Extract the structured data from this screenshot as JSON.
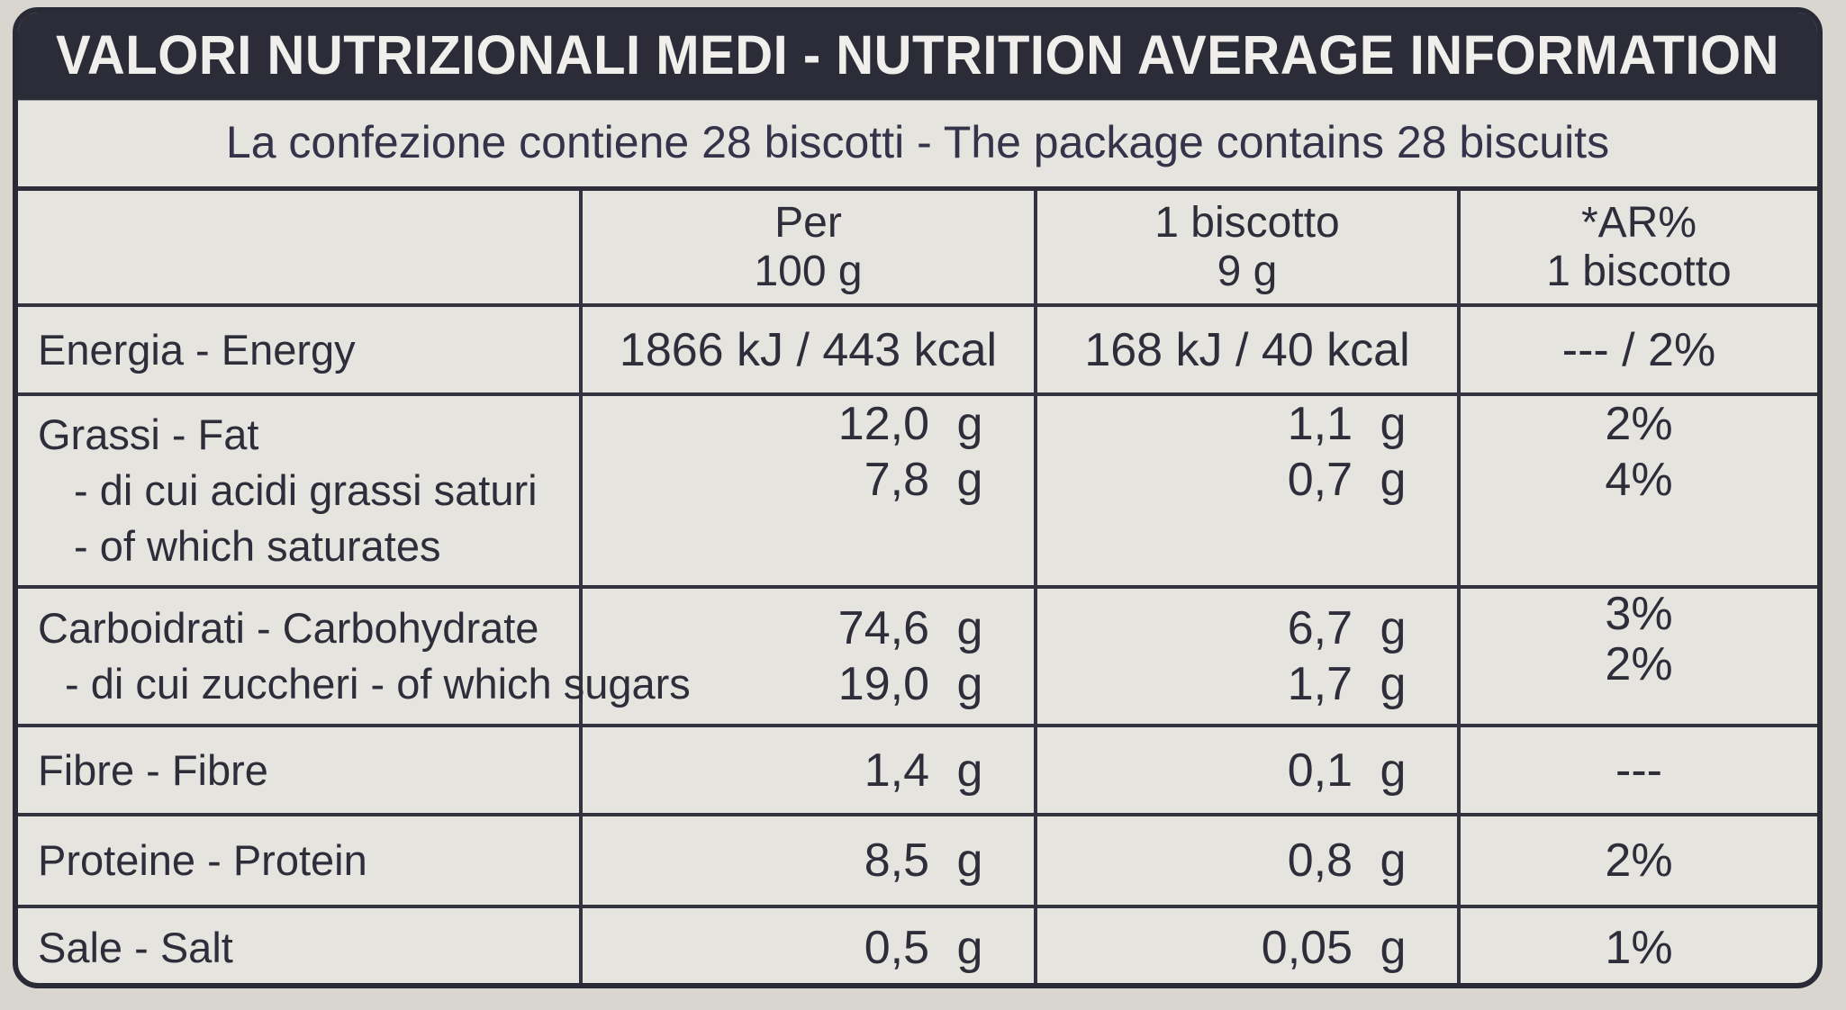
{
  "header": {
    "title": "VALORI NUTRIZIONALI MEDI - NUTRITION AVERAGE INFORMATION",
    "subtitle": "La confezione contiene 28 biscotti - The package contains 28 biscuits"
  },
  "columns": {
    "per100": [
      "Per",
      "100 g"
    ],
    "per_biscuit": [
      "1 biscotto",
      "9 g"
    ],
    "ar": [
      "*AR%",
      "1 biscotto"
    ]
  },
  "rows": {
    "energy": {
      "name": "Energia - Energy",
      "per100": "1866 kJ / 443 kcal",
      "per_biscuit": "168 kJ / 40 kcal",
      "ar": "--- / 2%"
    },
    "fat": {
      "name": "Grassi - Fat",
      "per100": "12,0",
      "per_biscuit": "1,1",
      "ar": "2%"
    },
    "saturates": {
      "name_it": "- di cui acidi grassi saturi",
      "name_en": "- of which saturates",
      "per100": "7,8",
      "per_biscuit": "0,7",
      "ar": "4%"
    },
    "carbohydrate": {
      "name": "Carboidrati - Carbohydrate",
      "per100": "74,6",
      "per_biscuit": "6,7",
      "ar": "3%"
    },
    "sugars": {
      "name": "- di cui zuccheri - of which sugars",
      "per100": "19,0",
      "per_biscuit": "1,7",
      "ar": "2%"
    },
    "fibre": {
      "name": "Fibre - Fibre",
      "per100": "1,4",
      "per_biscuit": "0,1",
      "ar": "---"
    },
    "protein": {
      "name": "Proteine - Protein",
      "per100": "8,5",
      "per_biscuit": "0,8",
      "ar": "2%"
    },
    "salt": {
      "name": "Sale - Salt",
      "per100": "0,5",
      "per_biscuit": "0,05",
      "ar": "1%"
    }
  },
  "unit": "g"
}
